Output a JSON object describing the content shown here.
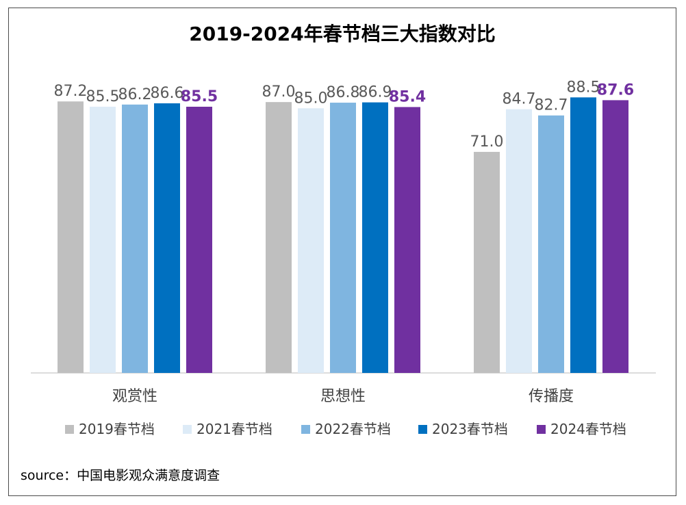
{
  "chart_data": {
    "type": "bar",
    "title": "2019-2024年春节档三大指数对比",
    "categories": [
      "观赏性",
      "思想性",
      "传播度"
    ],
    "series": [
      {
        "name": "2019春节档",
        "color": "#bfbfbf",
        "label_color": "#595959",
        "label_bold": false,
        "values": [
          87.2,
          87.0,
          71.0
        ]
      },
      {
        "name": "2021春节档",
        "color": "#ddebf7",
        "label_color": "#595959",
        "label_bold": false,
        "values": [
          85.5,
          85.0,
          84.7
        ]
      },
      {
        "name": "2022春节档",
        "color": "#7fb5e0",
        "label_color": "#595959",
        "label_bold": false,
        "values": [
          86.2,
          86.8,
          82.7
        ]
      },
      {
        "name": "2023春节档",
        "color": "#0070c0",
        "label_color": "#595959",
        "label_bold": false,
        "values": [
          86.6,
          86.9,
          88.5
        ]
      },
      {
        "name": "2024春节档",
        "color": "#7030a0",
        "label_color": "#7030a0",
        "label_bold": true,
        "values": [
          85.5,
          85.4,
          87.6
        ]
      }
    ],
    "ylim": [
      0,
      100
    ],
    "grid": false,
    "legend_position": "bottom",
    "source": "source：中国电影观众满意度调查"
  }
}
